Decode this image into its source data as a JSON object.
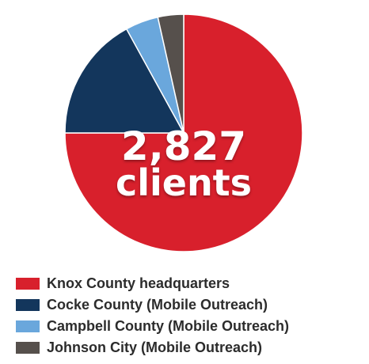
{
  "chart_data": {
    "type": "pie",
    "center_label": {
      "value": "2,827",
      "unit": "clients"
    },
    "slices": [
      {
        "name": "Knox County headquarters",
        "value": 75.0,
        "color": "#d8202c"
      },
      {
        "name": "Cocke County (Mobile Outreach)",
        "value": 17.0,
        "color": "#13365c"
      },
      {
        "name": "Campbell County (Mobile Outreach)",
        "value": 4.5,
        "color": "#6aa7dc"
      },
      {
        "name": "Johnson City (Mobile Outreach)",
        "value": 3.5,
        "color": "#56504c"
      }
    ],
    "legend_position": "bottom-left"
  }
}
